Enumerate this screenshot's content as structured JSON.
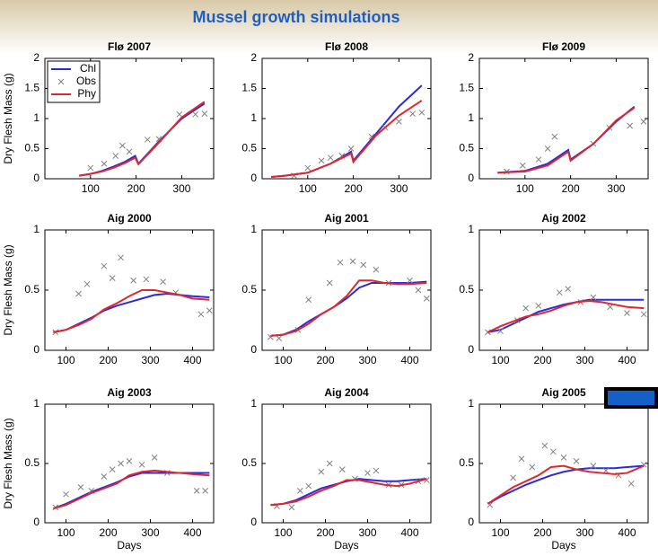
{
  "title": "Mussel growth simulations",
  "chart_data": [
    {
      "type": "line",
      "title": "Flø 2007",
      "ylabel": "Dry Flesh Mass (g)",
      "xlim": [
        0,
        370
      ],
      "ylim": [
        0,
        2
      ],
      "xticks": [
        100,
        200,
        300
      ],
      "yticks": [
        0,
        0.5,
        1,
        1.5,
        2
      ],
      "legend": "upper left",
      "x": [
        75,
        100,
        125,
        150,
        175,
        198,
        205,
        250,
        300,
        350
      ],
      "series": [
        {
          "name": "Chl",
          "color": "#2b2bd9",
          "style": "line",
          "values": [
            0.05,
            0.08,
            0.13,
            0.2,
            0.28,
            0.38,
            0.25,
            0.62,
            1.0,
            1.25
          ]
        },
        {
          "name": "Obs",
          "color": "#808080",
          "style": "x",
          "x": [
            100,
            130,
            155,
            170,
            185,
            225,
            250,
            295,
            330,
            350
          ],
          "values": [
            0.18,
            0.25,
            0.38,
            0.55,
            0.45,
            0.65,
            0.66,
            1.07,
            1.07,
            1.08
          ]
        },
        {
          "name": "Phy",
          "color": "#e0282c",
          "style": "line",
          "values": [
            0.05,
            0.08,
            0.12,
            0.18,
            0.26,
            0.35,
            0.24,
            0.6,
            1.02,
            1.28
          ]
        }
      ]
    },
    {
      "type": "line",
      "title": "Flø 2008",
      "xlim": [
        0,
        370
      ],
      "ylim": [
        0,
        2
      ],
      "xticks": [
        100,
        200,
        300
      ],
      "yticks": [
        0,
        0.5,
        1,
        1.5,
        2
      ],
      "x": [
        20,
        50,
        100,
        150,
        195,
        200,
        250,
        300,
        350
      ],
      "series": [
        {
          "color": "#2b2bd9",
          "style": "line",
          "values": [
            0.03,
            0.05,
            0.1,
            0.25,
            0.45,
            0.3,
            0.75,
            1.2,
            1.55
          ]
        },
        {
          "color": "#808080",
          "style": "x",
          "x": [
            70,
            100,
            130,
            150,
            175,
            195,
            240,
            270,
            300,
            330,
            350
          ],
          "values": [
            0.05,
            0.18,
            0.3,
            0.35,
            0.38,
            0.5,
            0.7,
            0.85,
            0.95,
            1.08,
            1.1
          ]
        },
        {
          "color": "#e0282c",
          "style": "line",
          "values": [
            0.03,
            0.05,
            0.1,
            0.25,
            0.42,
            0.28,
            0.72,
            1.05,
            1.3
          ]
        }
      ]
    },
    {
      "type": "line",
      "title": "Flø 2009",
      "xlim": [
        0,
        370
      ],
      "ylim": [
        0,
        2
      ],
      "xticks": [
        100,
        200,
        300
      ],
      "yticks": [
        0,
        0.5,
        1,
        1.5,
        2
      ],
      "x": [
        40,
        100,
        150,
        195,
        200,
        250,
        300,
        340
      ],
      "series": [
        {
          "color": "#2b2bd9",
          "style": "line",
          "values": [
            0.1,
            0.13,
            0.25,
            0.48,
            0.32,
            0.58,
            0.95,
            1.2
          ]
        },
        {
          "color": "#808080",
          "style": "x",
          "x": [
            60,
            95,
            130,
            150,
            165,
            250,
            285,
            330,
            360
          ],
          "values": [
            0.12,
            0.22,
            0.32,
            0.5,
            0.7,
            0.58,
            0.85,
            0.88,
            0.95
          ]
        },
        {
          "color": "#e0282c",
          "style": "line",
          "values": [
            0.1,
            0.12,
            0.22,
            0.45,
            0.3,
            0.58,
            0.97,
            1.18
          ]
        }
      ]
    },
    {
      "type": "line",
      "title": "Aig 2000",
      "ylabel": "Dry Flesh Mass (g)",
      "xlim": [
        50,
        450
      ],
      "ylim": [
        0,
        1
      ],
      "xticks": [
        100,
        200,
        300,
        400
      ],
      "yticks": [
        0,
        0.5,
        1
      ],
      "x": [
        70,
        100,
        130,
        160,
        190,
        220,
        250,
        280,
        310,
        340,
        370,
        400,
        440
      ],
      "series": [
        {
          "color": "#2b2bd9",
          "style": "line",
          "values": [
            0.15,
            0.17,
            0.22,
            0.27,
            0.33,
            0.37,
            0.4,
            0.43,
            0.46,
            0.47,
            0.46,
            0.45,
            0.44
          ]
        },
        {
          "color": "#808080",
          "style": "x",
          "x": [
            75,
            130,
            150,
            190,
            210,
            230,
            260,
            290,
            330,
            360,
            420,
            440
          ],
          "values": [
            0.15,
            0.47,
            0.55,
            0.7,
            0.6,
            0.77,
            0.58,
            0.59,
            0.57,
            0.48,
            0.3,
            0.33
          ]
        },
        {
          "color": "#e0282c",
          "style": "line",
          "values": [
            0.15,
            0.17,
            0.21,
            0.26,
            0.34,
            0.39,
            0.45,
            0.5,
            0.5,
            0.48,
            0.46,
            0.43,
            0.42
          ]
        }
      ]
    },
    {
      "type": "line",
      "title": "Aig 2001",
      "xlim": [
        50,
        450
      ],
      "ylim": [
        0,
        1
      ],
      "xticks": [
        100,
        200,
        300,
        400
      ],
      "yticks": [
        0,
        0.5,
        1
      ],
      "x": [
        70,
        100,
        130,
        160,
        190,
        220,
        250,
        280,
        310,
        340,
        370,
        400,
        440
      ],
      "series": [
        {
          "color": "#2b2bd9",
          "style": "line",
          "values": [
            0.12,
            0.13,
            0.17,
            0.24,
            0.3,
            0.36,
            0.43,
            0.52,
            0.56,
            0.56,
            0.56,
            0.56,
            0.57
          ]
        },
        {
          "color": "#808080",
          "style": "x",
          "x": [
            70,
            90,
            135,
            160,
            210,
            235,
            265,
            290,
            320,
            350,
            400,
            420,
            440
          ],
          "values": [
            0.11,
            0.1,
            0.17,
            0.42,
            0.56,
            0.73,
            0.74,
            0.71,
            0.67,
            0.56,
            0.58,
            0.5,
            0.43
          ]
        },
        {
          "color": "#e0282c",
          "style": "line",
          "values": [
            0.12,
            0.13,
            0.16,
            0.22,
            0.3,
            0.36,
            0.45,
            0.58,
            0.58,
            0.56,
            0.55,
            0.55,
            0.56
          ]
        }
      ]
    },
    {
      "type": "line",
      "title": "Aig 2002",
      "xlim": [
        50,
        450
      ],
      "ylim": [
        0,
        1
      ],
      "xticks": [
        100,
        200,
        300,
        400
      ],
      "yticks": [
        0,
        0.5,
        1
      ],
      "x": [
        70,
        100,
        130,
        160,
        190,
        220,
        250,
        280,
        310,
        340,
        370,
        400,
        440
      ],
      "series": [
        {
          "color": "#2b2bd9",
          "style": "line",
          "values": [
            0.15,
            0.17,
            0.22,
            0.27,
            0.32,
            0.35,
            0.38,
            0.4,
            0.42,
            0.42,
            0.42,
            0.42,
            0.42
          ]
        },
        {
          "color": "#808080",
          "style": "x",
          "x": [
            70,
            100,
            140,
            160,
            190,
            240,
            260,
            290,
            320,
            360,
            400,
            440
          ],
          "values": [
            0.15,
            0.16,
            0.25,
            0.35,
            0.37,
            0.48,
            0.51,
            0.4,
            0.44,
            0.36,
            0.31,
            0.3
          ]
        },
        {
          "color": "#e0282c",
          "style": "line",
          "values": [
            0.15,
            0.2,
            0.24,
            0.28,
            0.3,
            0.33,
            0.37,
            0.4,
            0.41,
            0.4,
            0.38,
            0.36,
            0.35
          ]
        }
      ]
    },
    {
      "type": "line",
      "title": "Aig 2003",
      "ylabel": "Dry Flesh Mass (g)",
      "xlabel": "Days",
      "xlim": [
        50,
        450
      ],
      "ylim": [
        0,
        1
      ],
      "xticks": [
        100,
        200,
        300,
        400
      ],
      "yticks": [
        0,
        0.5,
        1
      ],
      "x": [
        70,
        100,
        130,
        160,
        190,
        220,
        250,
        280,
        310,
        340,
        370,
        400,
        440
      ],
      "series": [
        {
          "color": "#2b2bd9",
          "style": "line",
          "values": [
            0.12,
            0.16,
            0.21,
            0.26,
            0.3,
            0.34,
            0.39,
            0.42,
            0.42,
            0.42,
            0.42,
            0.42,
            0.42
          ]
        },
        {
          "color": "#808080",
          "style": "x",
          "x": [
            75,
            100,
            135,
            160,
            190,
            210,
            230,
            250,
            280,
            310,
            340,
            410,
            430
          ],
          "values": [
            0.13,
            0.24,
            0.3,
            0.27,
            0.39,
            0.45,
            0.5,
            0.52,
            0.49,
            0.55,
            0.42,
            0.27,
            0.27
          ]
        },
        {
          "color": "#e0282c",
          "style": "line",
          "values": [
            0.12,
            0.15,
            0.2,
            0.25,
            0.29,
            0.33,
            0.4,
            0.43,
            0.44,
            0.43,
            0.42,
            0.41,
            0.4
          ]
        }
      ]
    },
    {
      "type": "line",
      "title": "Aig 2004",
      "xlabel": "Days",
      "xlim": [
        50,
        450
      ],
      "ylim": [
        0,
        1
      ],
      "xticks": [
        100,
        200,
        300,
        400
      ],
      "yticks": [
        0,
        0.5,
        1
      ],
      "x": [
        70,
        100,
        130,
        160,
        190,
        220,
        250,
        280,
        310,
        340,
        370,
        400,
        440
      ],
      "series": [
        {
          "color": "#2b2bd9",
          "style": "line",
          "values": [
            0.15,
            0.16,
            0.19,
            0.24,
            0.29,
            0.32,
            0.35,
            0.37,
            0.36,
            0.35,
            0.35,
            0.36,
            0.37
          ]
        },
        {
          "color": "#808080",
          "style": "x",
          "x": [
            85,
            120,
            140,
            160,
            190,
            210,
            240,
            270,
            300,
            320,
            350,
            380,
            420,
            440
          ],
          "values": [
            0.14,
            0.13,
            0.27,
            0.31,
            0.43,
            0.5,
            0.45,
            0.37,
            0.42,
            0.44,
            0.32,
            0.32,
            0.35,
            0.36
          ]
        },
        {
          "color": "#e0282c",
          "style": "line",
          "values": [
            0.15,
            0.16,
            0.18,
            0.22,
            0.27,
            0.31,
            0.36,
            0.36,
            0.34,
            0.32,
            0.31,
            0.33,
            0.37
          ]
        }
      ]
    },
    {
      "type": "line",
      "title": "Aig 2005",
      "xlabel": "Days",
      "xlim": [
        50,
        450
      ],
      "ylim": [
        0,
        1
      ],
      "xticks": [
        100,
        200,
        300,
        400
      ],
      "yticks": [
        0,
        0.5,
        1
      ],
      "x": [
        70,
        100,
        130,
        160,
        190,
        220,
        250,
        280,
        310,
        340,
        370,
        400,
        440
      ],
      "series": [
        {
          "color": "#2b2bd9",
          "style": "line",
          "values": [
            0.16,
            0.22,
            0.27,
            0.32,
            0.36,
            0.4,
            0.43,
            0.45,
            0.46,
            0.46,
            0.46,
            0.47,
            0.48
          ]
        },
        {
          "color": "#808080",
          "style": "x",
          "x": [
            75,
            130,
            150,
            175,
            205,
            225,
            250,
            280,
            320,
            350,
            380,
            410,
            440
          ],
          "values": [
            0.15,
            0.38,
            0.54,
            0.47,
            0.65,
            0.6,
            0.55,
            0.52,
            0.48,
            0.44,
            0.4,
            0.33,
            0.49
          ]
        },
        {
          "color": "#e0282c",
          "style": "line",
          "values": [
            0.16,
            0.23,
            0.3,
            0.35,
            0.4,
            0.47,
            0.48,
            0.45,
            0.43,
            0.42,
            0.41,
            0.42,
            0.48
          ]
        }
      ]
    }
  ]
}
